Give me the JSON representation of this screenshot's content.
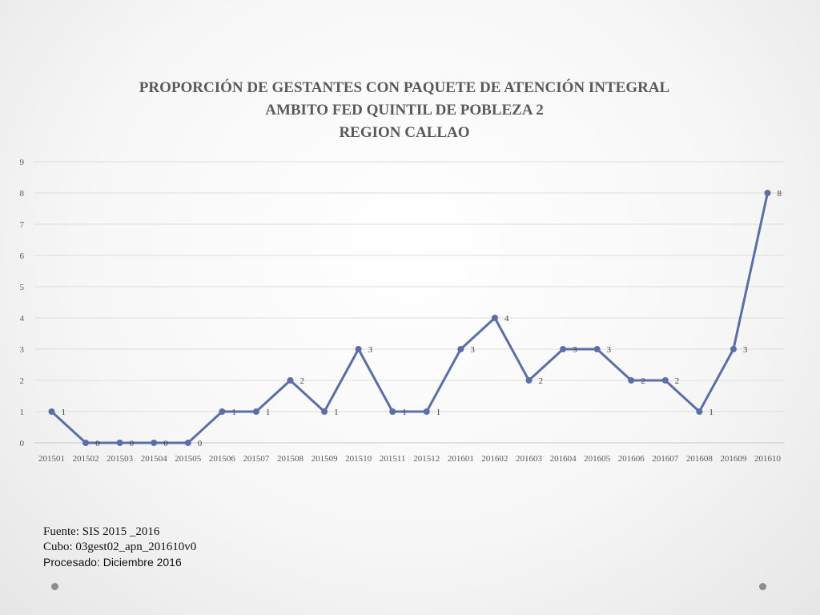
{
  "chart_data": {
    "type": "line",
    "title": [
      "PROPORCIÓN DE GESTANTES CON PAQUETE DE ATENCIÓN INTEGRAL",
      "AMBITO FED QUINTIL DE POBLEZA 2",
      "REGION CALLAO"
    ],
    "categories": [
      "201501",
      "201502",
      "201503",
      "201504",
      "201505",
      "201506",
      "201507",
      "201508",
      "201509",
      "201510",
      "201511",
      "201512",
      "201601",
      "201602",
      "201603",
      "201604",
      "201605",
      "201606",
      "201607",
      "201608",
      "201609",
      "201610"
    ],
    "series": [
      {
        "name": "Gestantes",
        "values": [
          1,
          0,
          0,
          0,
          0,
          1,
          1,
          2,
          1,
          3,
          1,
          1,
          3,
          4,
          2,
          3,
          3,
          2,
          2,
          1,
          3,
          8
        ]
      }
    ],
    "yticks": [
      0,
      1,
      2,
      3,
      4,
      5,
      6,
      7,
      8,
      9
    ],
    "ylim": [
      0,
      9
    ],
    "xlabel": "",
    "ylabel": "",
    "grid": true,
    "legend": "none",
    "line_color": "#5a6ea8"
  },
  "footer": {
    "source": "Fuente: SIS 2015 _2016",
    "cube": "Cubo: 03gest02_apn_201610v0",
    "processed": "Procesado: Diciembre 2016"
  }
}
